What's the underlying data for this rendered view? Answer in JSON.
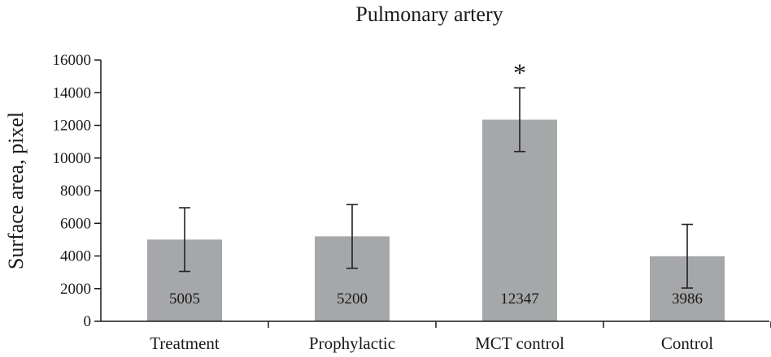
{
  "chart_data": {
    "type": "bar",
    "title": "Pulmonary artery",
    "xlabel": "",
    "ylabel": "Surface area, pixel",
    "ylim": [
      0,
      16000
    ],
    "yticks": [
      0,
      2000,
      4000,
      6000,
      8000,
      10000,
      12000,
      14000,
      16000
    ],
    "ytick_labels": [
      "0",
      "2000",
      "4000",
      "6000",
      "8000",
      "10000",
      "12000",
      "14000",
      "16000"
    ],
    "categories": [
      "Treatment",
      "Prophylactic",
      "MCT control",
      "Control"
    ],
    "values": [
      5005,
      5200,
      12347,
      3986
    ],
    "value_labels": [
      "5005",
      "5200",
      "12347",
      "3986"
    ],
    "error": [
      1950,
      1950,
      1950,
      1950
    ],
    "significance": [
      "",
      "",
      "*",
      ""
    ],
    "grid": false,
    "legend": "none",
    "bar_color": "#a6a7a9",
    "axis_color": "#1a1a1a"
  }
}
